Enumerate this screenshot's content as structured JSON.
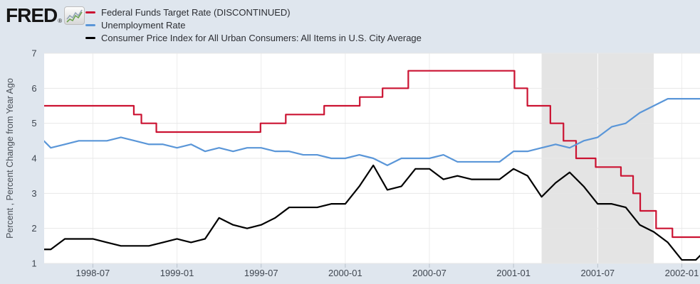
{
  "header": {
    "logo_text": "FRED",
    "registered_mark": "®",
    "logo_icon": "fred-sparkline-icon"
  },
  "legend": {
    "items": [
      {
        "label": "Federal Funds Target Rate (DISCONTINUED)",
        "color": "#cb1332"
      },
      {
        "label": "Unemployment Rate",
        "color": "#5a96d8"
      },
      {
        "label": "Consumer Price Index for All Urban Consumers: All Items in U.S. City Average",
        "color": "#000000"
      }
    ]
  },
  "chart_data": {
    "type": "line",
    "ylabel": "Percent , Percent Change from Year Ago",
    "ylim": [
      1,
      7
    ],
    "y_ticks": [
      1,
      2,
      3,
      4,
      5,
      6,
      7
    ],
    "x_ticks": [
      "1998-07",
      "1999-01",
      "1999-07",
      "2000-01",
      "2000-07",
      "2001-01",
      "2001-07",
      "2002-01"
    ],
    "xlim": [
      "1998-03-17",
      "2002-02-10"
    ],
    "grid": true,
    "legend_position": "top-left",
    "plot_background": "#ffffff",
    "page_background": "#dfe6ee",
    "recession_band": {
      "start": "2001-03-01",
      "end": "2001-11-01",
      "color": "#e4e4e4"
    },
    "series": [
      {
        "name": "Federal Funds Target Rate (DISCONTINUED)",
        "color": "#cb1332",
        "style": "step",
        "changes": [
          [
            "1998-03-01",
            5.5
          ],
          [
            "1998-09-29",
            5.25
          ],
          [
            "1998-10-15",
            5.0
          ],
          [
            "1998-11-17",
            4.75
          ],
          [
            "1999-06-30",
            5.0
          ],
          [
            "1999-08-24",
            5.25
          ],
          [
            "1999-11-16",
            5.5
          ],
          [
            "2000-02-02",
            5.75
          ],
          [
            "2000-03-21",
            6.0
          ],
          [
            "2000-05-16",
            6.5
          ],
          [
            "2001-01-03",
            6.0
          ],
          [
            "2001-01-31",
            5.5
          ],
          [
            "2001-03-20",
            5.0
          ],
          [
            "2001-04-18",
            4.5
          ],
          [
            "2001-05-15",
            4.0
          ],
          [
            "2001-06-27",
            3.75
          ],
          [
            "2001-08-21",
            3.5
          ],
          [
            "2001-09-17",
            3.0
          ],
          [
            "2001-10-02",
            2.5
          ],
          [
            "2001-11-06",
            2.0
          ],
          [
            "2001-12-11",
            1.75
          ]
        ]
      },
      {
        "name": "Unemployment Rate",
        "color": "#5a96d8",
        "style": "line",
        "start": "1998-03",
        "values": [
          4.7,
          4.3,
          4.4,
          4.5,
          4.5,
          4.5,
          4.6,
          4.5,
          4.4,
          4.4,
          4.3,
          4.4,
          4.2,
          4.3,
          4.2,
          4.3,
          4.3,
          4.2,
          4.2,
          4.1,
          4.1,
          4.0,
          4.0,
          4.1,
          4.0,
          3.8,
          4.0,
          4.0,
          4.0,
          4.1,
          3.9,
          3.9,
          3.9,
          3.9,
          4.2,
          4.2,
          4.3,
          4.4,
          4.3,
          4.5,
          4.6,
          4.9,
          5.0,
          5.3,
          5.5,
          5.7,
          5.7,
          5.7,
          5.7
        ]
      },
      {
        "name": "Consumer Price Index for All Urban Consumers: All Items in U.S. City Average",
        "color": "#000000",
        "style": "line",
        "start": "1998-03",
        "values": [
          1.4,
          1.4,
          1.7,
          1.7,
          1.7,
          1.6,
          1.5,
          1.5,
          1.5,
          1.6,
          1.7,
          1.6,
          1.7,
          2.3,
          2.1,
          2.0,
          2.1,
          2.3,
          2.6,
          2.6,
          2.6,
          2.7,
          2.7,
          3.2,
          3.8,
          3.1,
          3.2,
          3.7,
          3.7,
          3.4,
          3.5,
          3.4,
          3.4,
          3.4,
          3.7,
          3.5,
          2.9,
          3.3,
          3.6,
          3.2,
          2.7,
          2.7,
          2.6,
          2.1,
          1.9,
          1.6,
          1.1,
          1.1,
          1.5
        ]
      }
    ]
  }
}
